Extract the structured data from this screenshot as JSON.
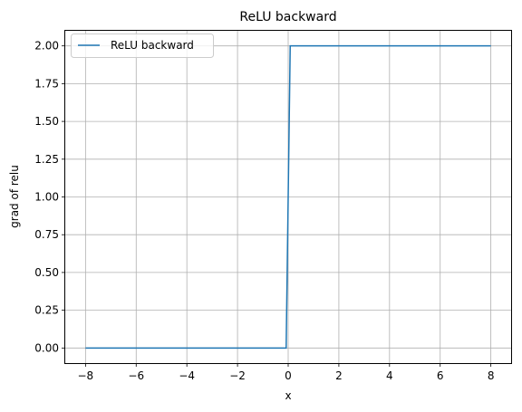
{
  "chart_data": {
    "type": "line",
    "title": "ReLU backward",
    "xlabel": "x",
    "ylabel": "grad of relu",
    "xlim": [
      -8.8,
      8.8
    ],
    "ylim": [
      -0.1,
      2.1
    ],
    "xticks": [
      -8,
      -6,
      -4,
      -2,
      0,
      2,
      4,
      6,
      8
    ],
    "xtick_labels": [
      "−8",
      "−6",
      "−4",
      "−2",
      "0",
      "2",
      "4",
      "6",
      "8"
    ],
    "yticks": [
      0.0,
      0.25,
      0.5,
      0.75,
      1.0,
      1.25,
      1.5,
      1.75,
      2.0
    ],
    "ytick_labels": [
      "0.00",
      "0.25",
      "0.50",
      "0.75",
      "1.00",
      "1.25",
      "1.50",
      "1.75",
      "2.00"
    ],
    "grid": true,
    "legend_position": "top-left",
    "series": [
      {
        "name": "ReLU backward",
        "color": "#1f77b4",
        "x": [
          -8,
          -0.08,
          0.08,
          8
        ],
        "y": [
          0,
          0,
          2,
          2
        ]
      }
    ]
  }
}
